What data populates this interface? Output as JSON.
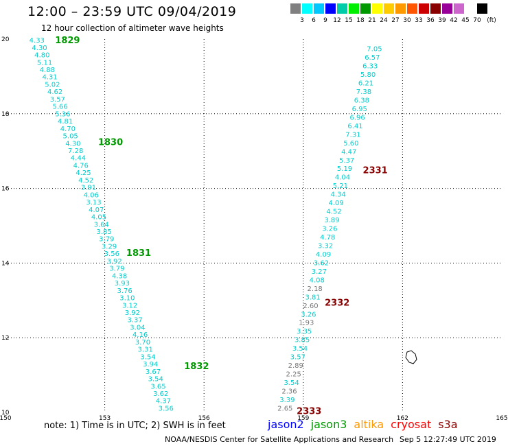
{
  "header": {
    "title": "12:00 – 23:59 UTC 09/04/2019",
    "subtitle": "12 hour collection of altimeter wave heights"
  },
  "legend": {
    "colors": [
      "#808080",
      "#00ffff",
      "#00c8ff",
      "#0000ff",
      "#00ccaa",
      "#00ee00",
      "#009900",
      "#ffff00",
      "#ffcc00",
      "#ff9900",
      "#ff5500",
      "#cc0000",
      "#880000",
      "#990099",
      "#cc66cc",
      "#ffffff",
      "#000000"
    ],
    "labels": [
      "3",
      "6",
      "9",
      "12",
      "15",
      "18",
      "21",
      "24",
      "27",
      "30",
      "33",
      "36",
      "39",
      "42",
      "45",
      "70",
      "(ft)"
    ]
  },
  "footer": {
    "note": "note: 1) Time is in UTC; 2) SWH is in feet",
    "satellites": [
      {
        "name": "jason2",
        "color": "#0000ff"
      },
      {
        "name": "jason3",
        "color": "#009900"
      },
      {
        "name": "altika",
        "color": "#ff9900"
      },
      {
        "name": "cryosat",
        "color": "#ff0000"
      },
      {
        "name": "s3a",
        "color": "#880000"
      }
    ],
    "credit": "NOAA/NESDIS Center for Satellite Applications and Research",
    "timestamp": "Sep  5 12:27:49 UTC 2019"
  },
  "chart_data": {
    "type": "scatter",
    "xlim": [
      150,
      165
    ],
    "ylim": [
      10,
      20
    ],
    "x_ticks": [
      150,
      153,
      156,
      159,
      162,
      165
    ],
    "x_tick_labels": [
      "150",
      "153",
      "156",
      "159",
      "162",
      "165"
    ],
    "y_ticks": [
      10,
      12,
      14,
      16,
      18,
      20
    ],
    "y_tick_labels": [
      "10",
      "12",
      "14",
      "16",
      "18",
      "20"
    ],
    "grid": true,
    "tracks": [
      {
        "color": "#00cccc",
        "start": [
          150.95,
          19.98
        ],
        "end": [
          154.85,
          10.12
        ],
        "values": [
          "4.33",
          "4.30",
          "4.80",
          "5.11",
          "4.88",
          "4.31",
          "5.02",
          "4.62",
          "3.57",
          "5.66",
          "5.36",
          "4.81",
          "4.70",
          "5.05",
          "4.30",
          "7.28",
          "4.44",
          "4.76",
          "4.25",
          "4.52",
          "3.91",
          "4.06",
          "3.13",
          "4.07",
          "4.05",
          "3.64",
          "3.85",
          "3.79",
          "3.29",
          "3.56",
          "3.92",
          "3.79",
          "4.38",
          "3.93",
          "3.76",
          "3.10",
          "3.12",
          "3.92",
          "3.37",
          "3.04",
          "4.16",
          "3.70",
          "3.31",
          "3.54",
          "3.94",
          "3.67",
          "3.54",
          "3.65",
          "3.62",
          "4.37",
          "3.56"
        ],
        "gray": []
      },
      {
        "color": "#00cccc",
        "start": [
          161.15,
          19.75
        ],
        "end": [
          158.45,
          10.12
        ],
        "values": [
          "7.05",
          "6.57",
          "6.33",
          "5.80",
          "6.21",
          "7.38",
          "6.38",
          "6.95",
          "6.96",
          "6.41",
          "7.31",
          "5.60",
          "4.47",
          "5.37",
          "5.19",
          "4.04",
          "5.21",
          "4.34",
          "4.09",
          "4.52",
          "3.89",
          "3.26",
          "4.78",
          "3.32",
          "4.09",
          "3.62",
          "3.27",
          "4.08",
          "2.18",
          "3.81",
          "2.60",
          "3.26",
          "1.93",
          "3.35",
          "3.85",
          "3.54",
          "3.57",
          "2.89",
          "2.25",
          "3.54",
          "2.36",
          "3.39",
          "2.65"
        ],
        "gray": [
          "2.18",
          "2.60",
          "1.93",
          "2.89",
          "2.25",
          "2.36",
          "2.65"
        ]
      }
    ],
    "time_labels": [
      {
        "text": "1829",
        "x": 151.5,
        "y": 19.98,
        "color": "#009900"
      },
      {
        "text": "1830",
        "x": 152.8,
        "y": 17.25,
        "color": "#009900"
      },
      {
        "text": "1831",
        "x": 153.65,
        "y": 14.28,
        "color": "#009900"
      },
      {
        "text": "1832",
        "x": 155.4,
        "y": 11.25,
        "color": "#009900"
      },
      {
        "text": "2331",
        "x": 160.8,
        "y": 16.5,
        "color": "#880000"
      },
      {
        "text": "2332",
        "x": 159.65,
        "y": 12.95,
        "color": "#880000"
      },
      {
        "text": "2333",
        "x": 158.8,
        "y": 10.05,
        "color": "#880000"
      }
    ]
  }
}
